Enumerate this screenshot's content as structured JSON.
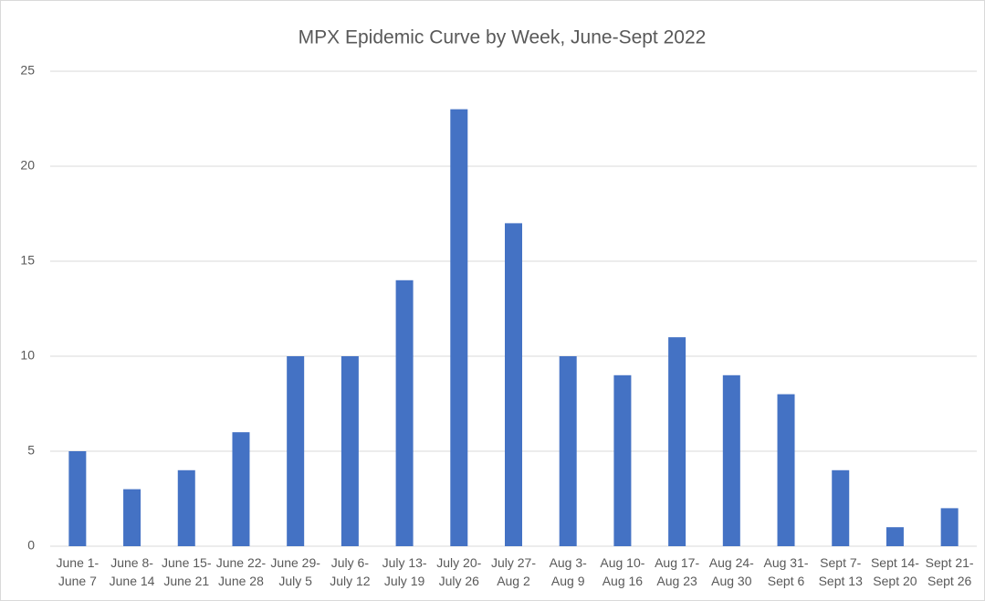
{
  "chart_data": {
    "type": "bar",
    "title": "MPX Epidemic Curve by Week, June-Sept 2022",
    "categories": [
      "June 1-\nJune 7",
      "June 8-\nJune 14",
      "June 15-\nJune 21",
      "June 22-\nJune 28",
      "June 29-\nJuly 5",
      "July 6-\nJuly 12",
      "July 13-\nJuly 19",
      "July 20-\nJuly 26",
      "July 27-\nAug 2",
      "Aug 3-\nAug 9",
      "Aug 10-\nAug 16",
      "Aug 17-\nAug 23",
      "Aug 24-\nAug 30",
      "Aug 31-\nSept 6",
      "Sept 7-\nSept 13",
      "Sept 14-\nSept 20",
      "Sept 21-\nSept 26"
    ],
    "values": [
      5,
      3,
      4,
      6,
      10,
      10,
      14,
      23,
      17,
      10,
      9,
      11,
      9,
      8,
      4,
      1,
      2
    ],
    "color": "#4472c4",
    "ylim": [
      0,
      25
    ],
    "yticks": [
      0,
      5,
      10,
      15,
      20,
      25
    ],
    "grid": true
  }
}
